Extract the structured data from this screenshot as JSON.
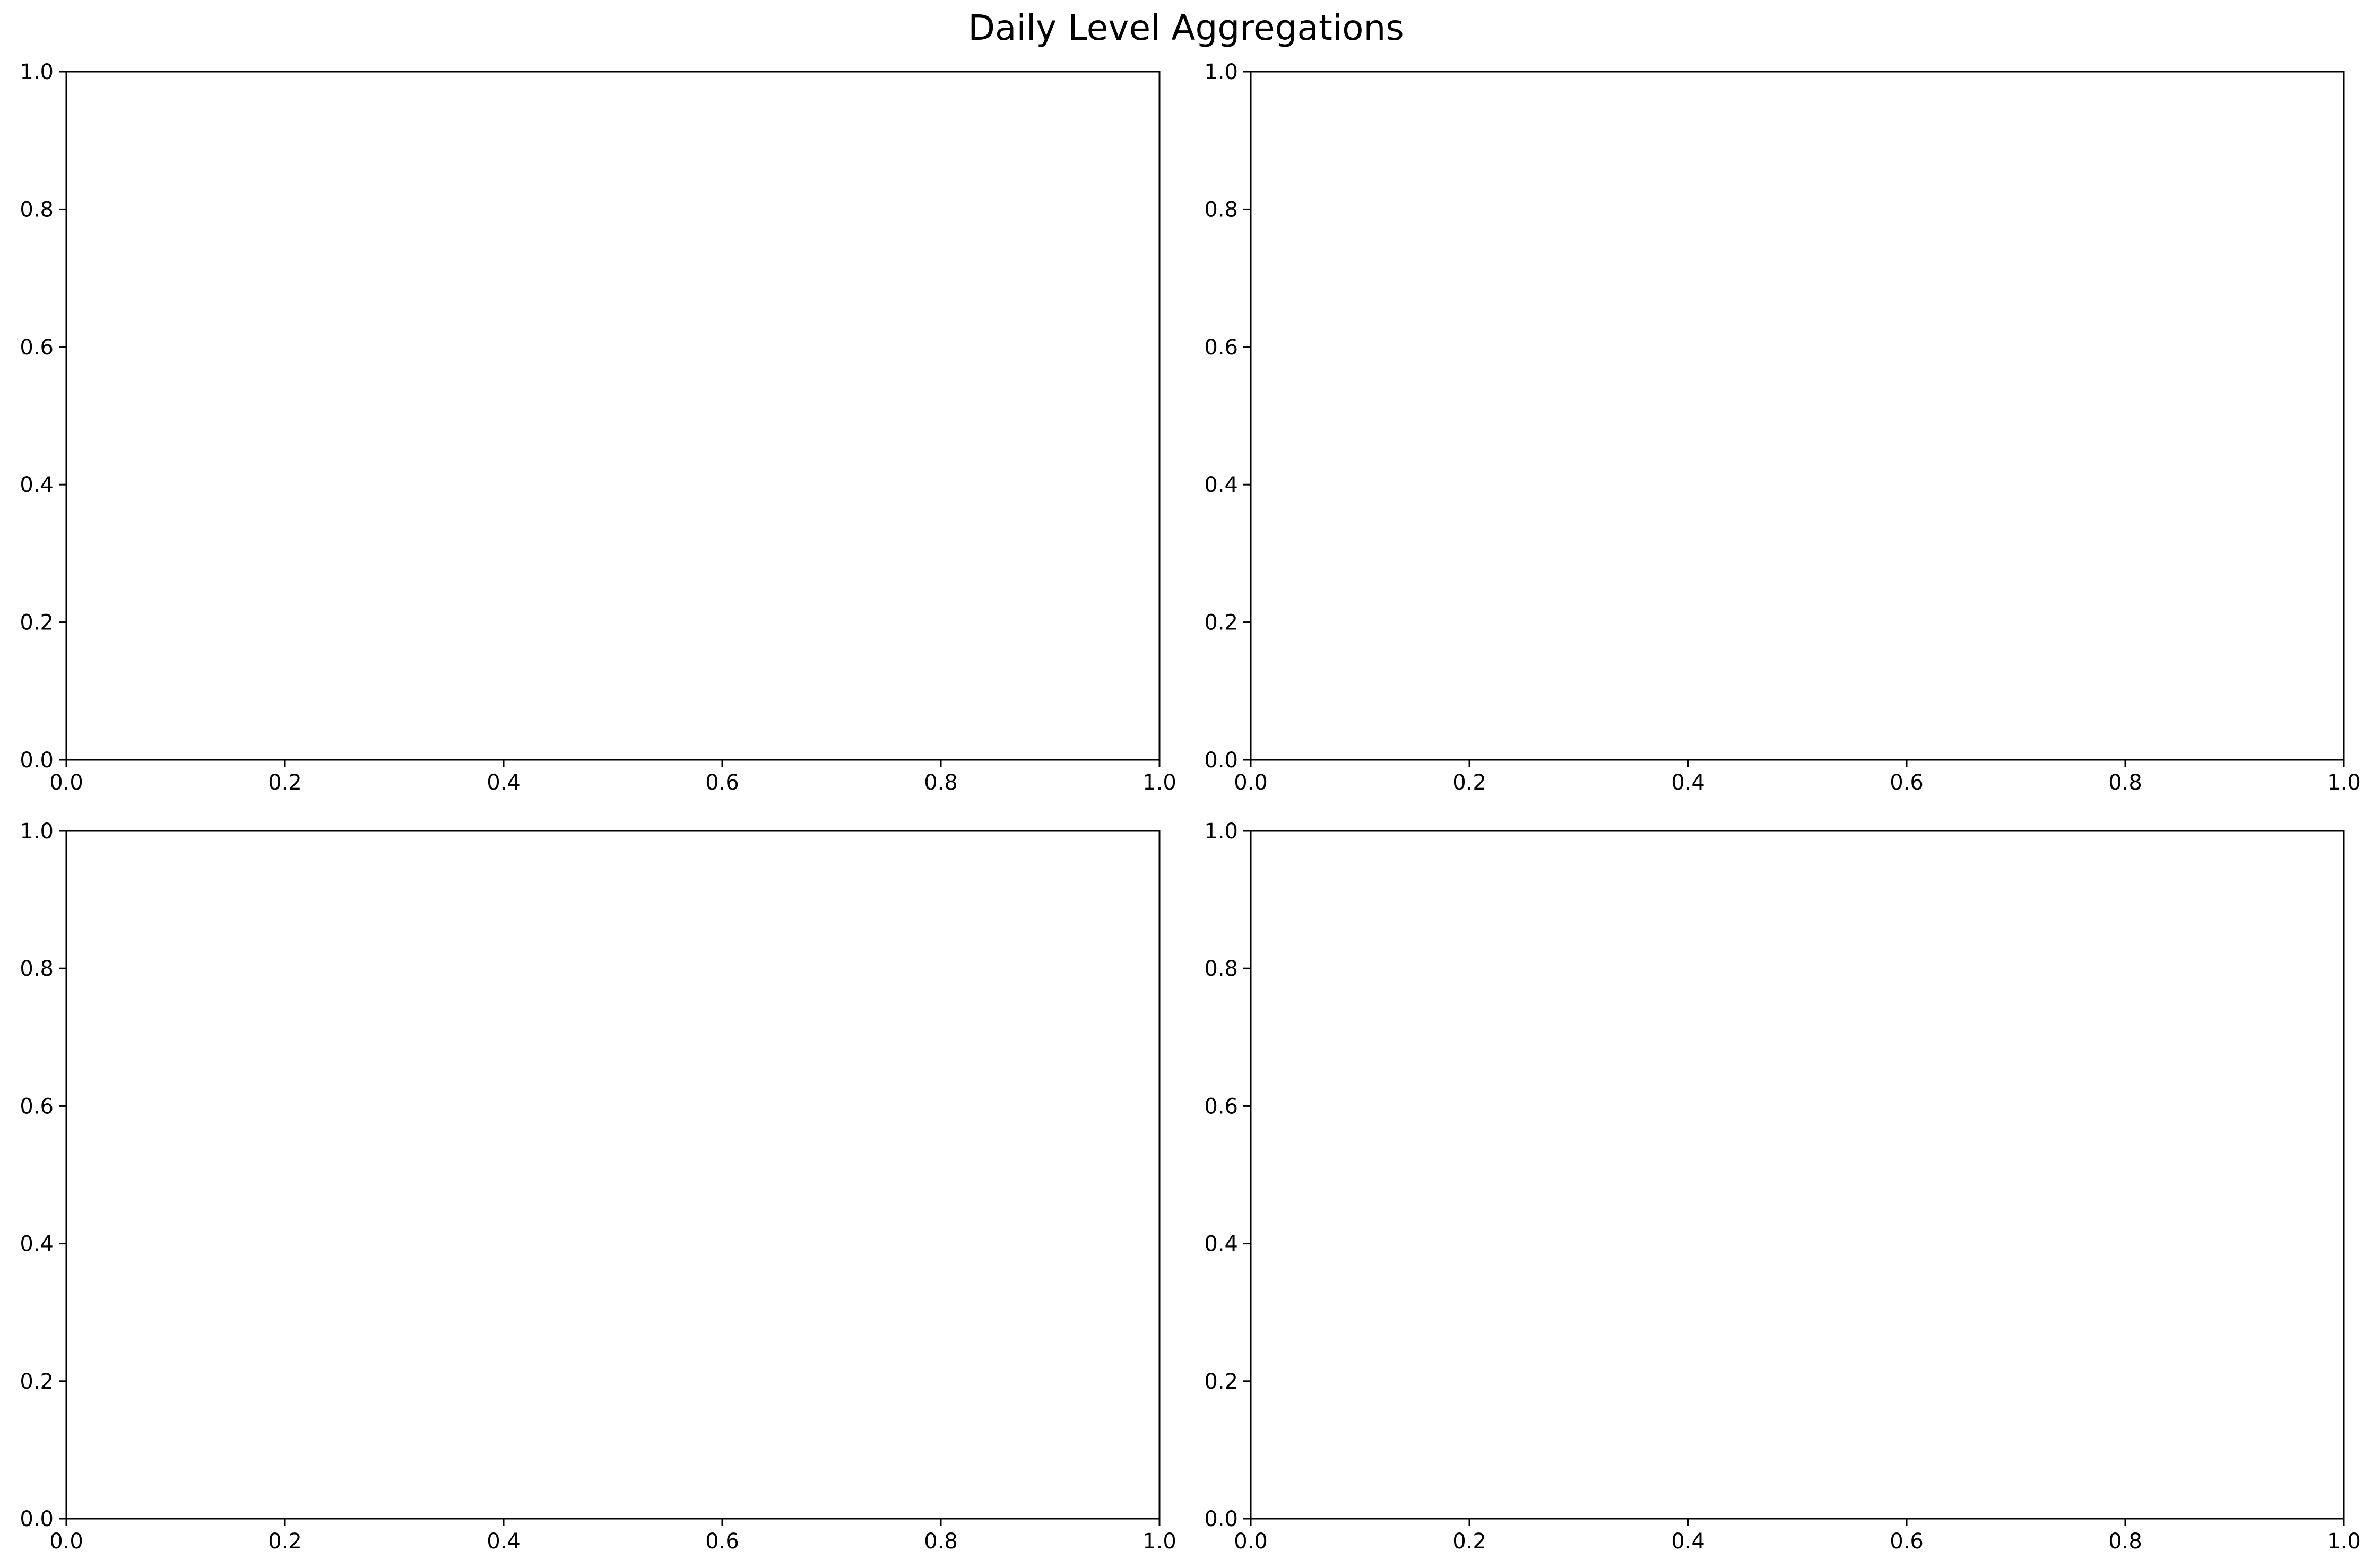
{
  "figure": {
    "title": "Daily Level Aggregations"
  },
  "chart_data": [
    {
      "type": "line",
      "title": "",
      "xlabel": "",
      "ylabel": "",
      "xlim": [
        0.0,
        1.0
      ],
      "ylim": [
        0.0,
        1.0
      ],
      "x_ticks": [
        "0.0",
        "0.2",
        "0.4",
        "0.6",
        "0.8",
        "1.0"
      ],
      "y_ticks": [
        "0.0",
        "0.2",
        "0.4",
        "0.6",
        "0.8",
        "1.0"
      ],
      "grid": false,
      "series": []
    },
    {
      "type": "line",
      "title": "",
      "xlabel": "",
      "ylabel": "",
      "xlim": [
        0.0,
        1.0
      ],
      "ylim": [
        0.0,
        1.0
      ],
      "x_ticks": [
        "0.0",
        "0.2",
        "0.4",
        "0.6",
        "0.8",
        "1.0"
      ],
      "y_ticks": [
        "0.0",
        "0.2",
        "0.4",
        "0.6",
        "0.8",
        "1.0"
      ],
      "grid": false,
      "series": []
    },
    {
      "type": "line",
      "title": "",
      "xlabel": "",
      "ylabel": "",
      "xlim": [
        0.0,
        1.0
      ],
      "ylim": [
        0.0,
        1.0
      ],
      "x_ticks": [
        "0.0",
        "0.2",
        "0.4",
        "0.6",
        "0.8",
        "1.0"
      ],
      "y_ticks": [
        "0.0",
        "0.2",
        "0.4",
        "0.6",
        "0.8",
        "1.0"
      ],
      "grid": false,
      "series": []
    },
    {
      "type": "line",
      "title": "",
      "xlabel": "",
      "ylabel": "",
      "xlim": [
        0.0,
        1.0
      ],
      "ylim": [
        0.0,
        1.0
      ],
      "x_ticks": [
        "0.0",
        "0.2",
        "0.4",
        "0.6",
        "0.8",
        "1.0"
      ],
      "y_ticks": [
        "0.0",
        "0.2",
        "0.4",
        "0.6",
        "0.8",
        "1.0"
      ],
      "grid": false,
      "series": []
    }
  ]
}
